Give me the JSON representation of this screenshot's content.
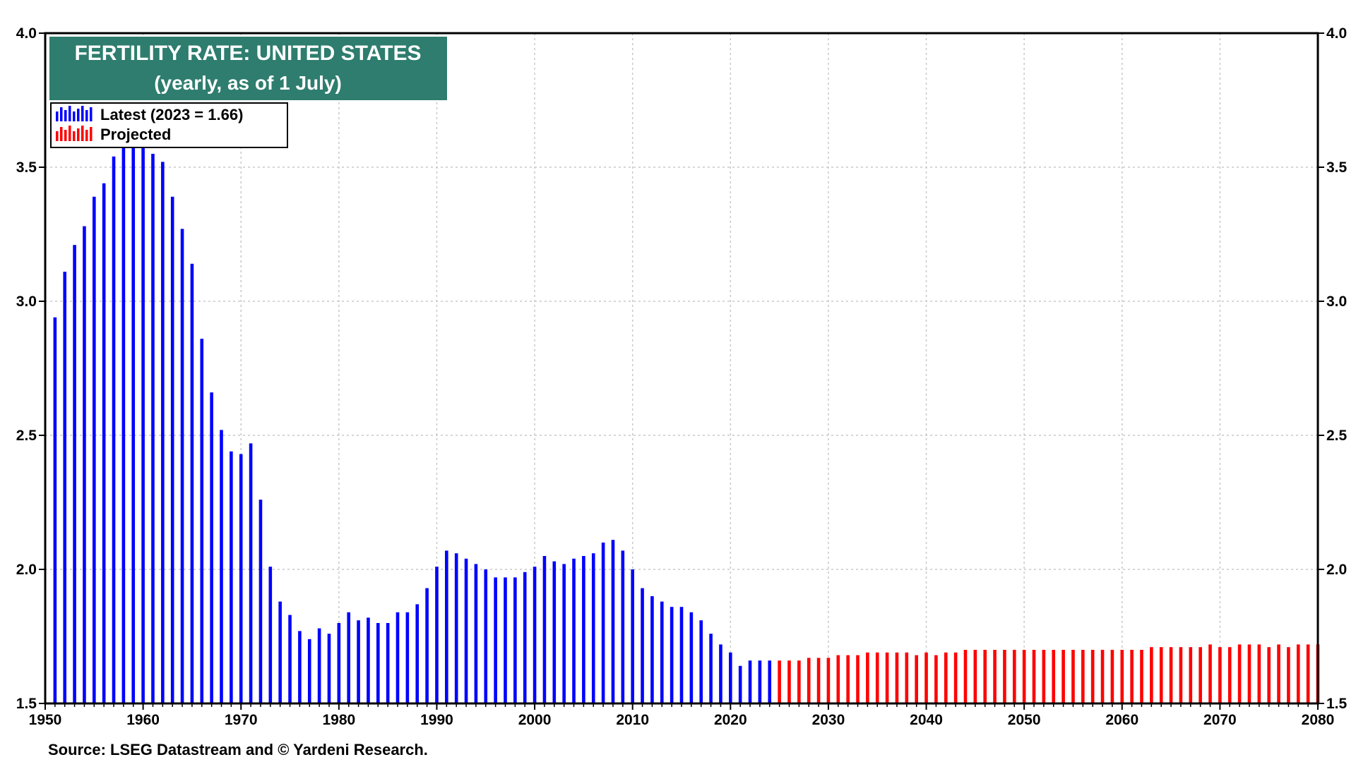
{
  "chart_data": {
    "type": "bar",
    "title": "FERTILITY RATE: UNITED STATES",
    "subtitle": "(yearly, as of 1 July)",
    "source": "Source: LSEG Datastream and © Yardeni Research.",
    "xlim": [
      1950,
      2080
    ],
    "ylim": [
      1.5,
      4.0
    ],
    "x_ticks": [
      "1950",
      "1960",
      "1970",
      "1980",
      "1990",
      "2000",
      "2010",
      "2020",
      "2030",
      "2040",
      "2050",
      "2060",
      "2070",
      "2080"
    ],
    "y_ticks": [
      "1.5",
      "2.0",
      "2.5",
      "3.0",
      "3.5",
      "4.0"
    ],
    "grid": true,
    "legend_position": "top-left",
    "series": [
      {
        "name": "Latest (2023 = 1.66)",
        "color": "#0000ff",
        "x": [
          1951,
          1952,
          1953,
          1954,
          1955,
          1956,
          1957,
          1958,
          1959,
          1960,
          1961,
          1962,
          1963,
          1964,
          1965,
          1966,
          1967,
          1968,
          1969,
          1970,
          1971,
          1972,
          1973,
          1974,
          1975,
          1976,
          1977,
          1978,
          1979,
          1980,
          1981,
          1982,
          1983,
          1984,
          1985,
          1986,
          1987,
          1988,
          1989,
          1990,
          1991,
          1992,
          1993,
          1994,
          1995,
          1996,
          1997,
          1998,
          1999,
          2000,
          2001,
          2002,
          2003,
          2004,
          2005,
          2006,
          2007,
          2008,
          2009,
          2010,
          2011,
          2012,
          2013,
          2014,
          2015,
          2016,
          2017,
          2018,
          2019,
          2020,
          2021,
          2022,
          2023,
          2024
        ],
        "values": [
          2.94,
          3.11,
          3.21,
          3.28,
          3.39,
          3.44,
          3.54,
          3.59,
          3.59,
          3.58,
          3.55,
          3.52,
          3.39,
          3.27,
          3.14,
          2.86,
          2.66,
          2.52,
          2.44,
          2.43,
          2.47,
          2.26,
          2.01,
          1.88,
          1.83,
          1.77,
          1.74,
          1.78,
          1.76,
          1.8,
          1.84,
          1.81,
          1.82,
          1.8,
          1.8,
          1.84,
          1.84,
          1.87,
          1.93,
          2.01,
          2.07,
          2.06,
          2.04,
          2.02,
          2.0,
          1.97,
          1.97,
          1.97,
          1.99,
          2.01,
          2.05,
          2.03,
          2.02,
          2.04,
          2.05,
          2.06,
          2.1,
          2.11,
          2.07,
          2.0,
          1.93,
          1.9,
          1.88,
          1.86,
          1.86,
          1.84,
          1.81,
          1.76,
          1.72,
          1.69,
          1.64,
          1.66,
          1.66,
          1.66
        ]
      },
      {
        "name": "Projected",
        "color": "#ff0000",
        "x": [
          2025,
          2026,
          2027,
          2028,
          2029,
          2030,
          2031,
          2032,
          2033,
          2034,
          2035,
          2036,
          2037,
          2038,
          2039,
          2040,
          2041,
          2042,
          2043,
          2044,
          2045,
          2046,
          2047,
          2048,
          2049,
          2050,
          2051,
          2052,
          2053,
          2054,
          2055,
          2056,
          2057,
          2058,
          2059,
          2060,
          2061,
          2062,
          2063,
          2064,
          2065,
          2066,
          2067,
          2068,
          2069,
          2070,
          2071,
          2072,
          2073,
          2074,
          2075,
          2076,
          2077,
          2078,
          2079,
          2080
        ],
        "values": [
          1.66,
          1.66,
          1.66,
          1.67,
          1.67,
          1.67,
          1.68,
          1.68,
          1.68,
          1.69,
          1.69,
          1.69,
          1.69,
          1.69,
          1.68,
          1.69,
          1.68,
          1.69,
          1.69,
          1.7,
          1.7,
          1.7,
          1.7,
          1.7,
          1.7,
          1.7,
          1.7,
          1.7,
          1.7,
          1.7,
          1.7,
          1.7,
          1.7,
          1.7,
          1.7,
          1.7,
          1.7,
          1.7,
          1.71,
          1.71,
          1.71,
          1.71,
          1.71,
          1.71,
          1.72,
          1.71,
          1.71,
          1.72,
          1.72,
          1.72,
          1.71,
          1.72,
          1.71,
          1.72,
          1.72,
          1.72
        ]
      }
    ]
  },
  "colors": {
    "title_background": "#2e7d6e",
    "grid": "#c8c8c8"
  }
}
